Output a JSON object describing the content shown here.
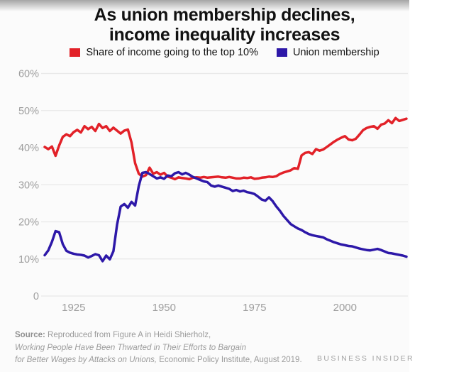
{
  "page": {
    "title_line1": "As union membership declines,",
    "title_line2": "income inequality increases"
  },
  "source": {
    "prefix": "Source:",
    "line1_rest": " Reproduced from Figure A in Heidi Shierholz,",
    "line2_italic": "Working People Have Been Thwarted in Their Efforts to Bargain",
    "line3_italic": "for Better Wages by Attacks on Unions,",
    "line3_rest": " Economic Policy Institute, August 2019."
  },
  "branding": {
    "wordmark": "BUSINESS INSIDER"
  },
  "colors": {
    "income_line": "#e22128",
    "union_line": "#2d18a8",
    "gridline": "#e8e8e8",
    "axis_label": "#9e9e9e",
    "title_text": "#121212",
    "source_text": "#9b9b9b"
  },
  "chart_data": {
    "type": "line",
    "title": "As union membership declines, income inequality increases",
    "xlabel": "",
    "ylabel": "",
    "grid": "horizontal",
    "legend_position": "top",
    "xlim": [
      1917,
      2017
    ],
    "ylim": [
      0,
      60
    ],
    "y_ticks": [
      {
        "v": 0,
        "label": "0"
      },
      {
        "v": 10,
        "label": "10%"
      },
      {
        "v": 20,
        "label": "20%"
      },
      {
        "v": 30,
        "label": "30%"
      },
      {
        "v": 40,
        "label": "40%"
      },
      {
        "v": 50,
        "label": "50%"
      },
      {
        "v": 60,
        "label": "60%"
      }
    ],
    "x_ticks": [
      {
        "v": 1925,
        "label": "1925"
      },
      {
        "v": 1950,
        "label": "1950"
      },
      {
        "v": 1975,
        "label": "1975"
      },
      {
        "v": 2000,
        "label": "2000"
      }
    ],
    "x": [
      1917,
      1918,
      1919,
      1920,
      1921,
      1922,
      1923,
      1924,
      1925,
      1926,
      1927,
      1928,
      1929,
      1930,
      1931,
      1932,
      1933,
      1934,
      1935,
      1936,
      1937,
      1938,
      1939,
      1940,
      1941,
      1942,
      1943,
      1944,
      1945,
      1946,
      1947,
      1948,
      1949,
      1950,
      1951,
      1952,
      1953,
      1954,
      1955,
      1956,
      1957,
      1958,
      1959,
      1960,
      1961,
      1962,
      1963,
      1964,
      1965,
      1966,
      1967,
      1968,
      1969,
      1970,
      1971,
      1972,
      1973,
      1974,
      1975,
      1976,
      1977,
      1978,
      1979,
      1980,
      1981,
      1982,
      1983,
      1984,
      1985,
      1986,
      1987,
      1988,
      1989,
      1990,
      1991,
      1992,
      1993,
      1994,
      1995,
      1996,
      1997,
      1998,
      1999,
      2000,
      2001,
      2002,
      2003,
      2004,
      2005,
      2006,
      2007,
      2008,
      2009,
      2010,
      2011,
      2012,
      2013,
      2014,
      2015,
      2016,
      2017
    ],
    "series": [
      {
        "name": "Share of income going to the top 10%",
        "color": "#e22128",
        "values": [
          40.2,
          39.6,
          40.3,
          37.8,
          40.6,
          42.9,
          43.6,
          43.1,
          44.2,
          44.8,
          44.1,
          45.8,
          45.0,
          45.6,
          44.5,
          46.4,
          45.3,
          45.8,
          44.5,
          45.4,
          44.6,
          43.8,
          44.6,
          44.9,
          41.4,
          35.8,
          33.0,
          32.2,
          32.6,
          34.6,
          33.0,
          33.4,
          32.7,
          33.2,
          32.2,
          31.9,
          31.5,
          32.0,
          31.8,
          31.7,
          31.5,
          31.9,
          32.0,
          31.9,
          32.1,
          31.9,
          32.0,
          32.1,
          32.2,
          32.0,
          31.9,
          32.1,
          31.9,
          31.7,
          31.7,
          31.9,
          31.8,
          32.0,
          31.6,
          31.7,
          31.9,
          32.0,
          32.2,
          32.1,
          32.3,
          32.9,
          33.3,
          33.6,
          33.9,
          34.5,
          34.3,
          37.9,
          38.6,
          38.8,
          38.3,
          39.6,
          39.2,
          39.5,
          40.2,
          40.9,
          41.6,
          42.2,
          42.7,
          43.1,
          42.2,
          42.0,
          42.4,
          43.5,
          44.7,
          45.3,
          45.6,
          45.8,
          45.1,
          46.2,
          46.5,
          47.4,
          46.6,
          48.0,
          47.2,
          47.5,
          47.8
        ]
      },
      {
        "name": "Union membership",
        "color": "#2d18a8",
        "values": [
          11.0,
          12.3,
          14.6,
          17.5,
          17.2,
          14.0,
          12.2,
          11.7,
          11.4,
          11.2,
          11.1,
          10.9,
          10.4,
          10.8,
          11.3,
          11.0,
          9.4,
          10.9,
          9.9,
          12.1,
          19.2,
          24.1,
          24.8,
          23.8,
          25.4,
          24.4,
          29.6,
          33.2,
          33.4,
          32.9,
          32.3,
          31.7,
          32.0,
          31.6,
          32.5,
          32.3,
          33.1,
          33.4,
          32.8,
          33.2,
          32.7,
          32.1,
          31.7,
          31.3,
          30.9,
          30.7,
          29.8,
          29.5,
          29.8,
          29.5,
          29.2,
          28.9,
          28.3,
          28.6,
          28.2,
          28.4,
          28.0,
          27.8,
          27.5,
          26.8,
          26.0,
          25.7,
          26.6,
          25.6,
          24.2,
          23.0,
          21.6,
          20.5,
          19.4,
          18.8,
          18.2,
          17.8,
          17.2,
          16.7,
          16.4,
          16.2,
          16.0,
          15.8,
          15.3,
          14.9,
          14.5,
          14.2,
          13.9,
          13.7,
          13.5,
          13.4,
          13.1,
          12.8,
          12.6,
          12.4,
          12.3,
          12.5,
          12.7,
          12.4,
          12.0,
          11.6,
          11.5,
          11.3,
          11.1,
          10.9,
          10.6
        ]
      }
    ]
  }
}
